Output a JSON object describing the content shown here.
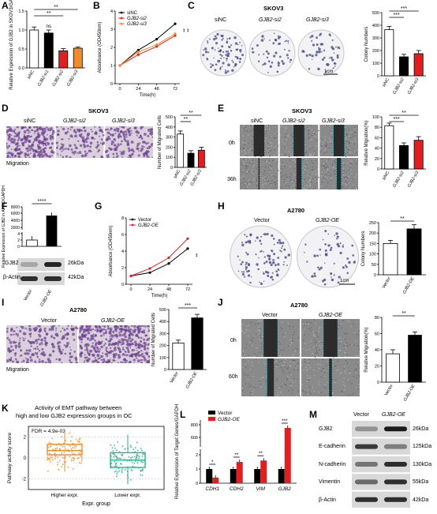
{
  "panels": {
    "A": {
      "label": "A"
    },
    "B": {
      "label": "B"
    },
    "C": {
      "label": "C",
      "title": "SKOV3",
      "groups": [
        "siNC",
        "GJB2-si2",
        "GJB2-si3"
      ],
      "scale": "1cm"
    },
    "D": {
      "label": "D",
      "title": "SKOV3",
      "groups": [
        "siNC",
        "GJB2-si2",
        "GJB2-si3"
      ],
      "caption": "Migration"
    },
    "E": {
      "label": "E",
      "title": "SKOV3",
      "groups": [
        "siNC",
        "GJB2-si2",
        "GJB2-si3"
      ],
      "rows": [
        "0h",
        "36h"
      ]
    },
    "F": {
      "label": "F",
      "blots": [
        {
          "name": "GJB2",
          "kda": "26kDa"
        },
        {
          "name": "β-Actin",
          "kda": "42kDa"
        }
      ]
    },
    "G": {
      "label": "G",
      "title": "A2780"
    },
    "H": {
      "label": "H",
      "title": "A2780",
      "groups": [
        "Vector",
        "GJB2-OE"
      ],
      "scale": "1cm"
    },
    "I": {
      "label": "I",
      "title": "A2780",
      "groups": [
        "Vector",
        "GJB2-OE"
      ],
      "caption": "Migration"
    },
    "J": {
      "label": "J",
      "title": "A2780",
      "groups": [
        "Vector",
        "GJB2-OE"
      ],
      "rows": [
        "0h",
        "60h"
      ]
    },
    "K": {
      "label": "K",
      "title_line1": "Activity of EMT pathway between",
      "title_line2": "high and low GJB2 expression groups in OC",
      "fdr": "FDR = 4.9e-03"
    },
    "L": {
      "label": "L"
    },
    "M": {
      "label": "M",
      "groups": [
        "Vector",
        "GJB2-OE"
      ],
      "blots": [
        {
          "name": "GJB2",
          "kda": "26kDa"
        },
        {
          "name": "E-cadherin",
          "kda": "125kDa"
        },
        {
          "name": "N-cadherin",
          "kda": "130kDa"
        },
        {
          "name": "Vimentin",
          "kda": "55kDa"
        },
        {
          "name": "β-Actin",
          "kda": "42kDa"
        }
      ]
    }
  },
  "chart_data": [
    {
      "id": "A",
      "type": "bar",
      "ylabel": "Relative Expression of GJB2 in SKOV3/GAPDH",
      "categories": [
        "siNC",
        "GJB2-si1",
        "GJB2-si2",
        "GJB2-si3"
      ],
      "values": [
        1.0,
        0.92,
        0.45,
        0.52
      ],
      "errors": [
        0.08,
        0.08,
        0.06,
        0.03
      ],
      "colors": [
        "#ffffff",
        "#000000",
        "#e02020",
        "#f08c2a"
      ],
      "ylim": [
        0,
        1.5
      ],
      "yticks": [
        "0.0",
        "0.5",
        "1.0",
        "1.5"
      ],
      "sig": [
        {
          "text": "**",
          "from": 0,
          "to": 3
        },
        {
          "text": "**",
          "from": 0,
          "to": 2
        },
        {
          "text": "ns",
          "at": 1
        }
      ]
    },
    {
      "id": "B",
      "type": "line",
      "xlabel": "Time(h)",
      "ylabel": "Absorbance (OD450nm)",
      "x": [
        0,
        24,
        48,
        72
      ],
      "xticks": [
        "0",
        "24",
        "48",
        "72"
      ],
      "ylim": [
        0,
        4
      ],
      "yticks": [
        "0",
        "1",
        "2",
        "3",
        "4"
      ],
      "series": [
        {
          "name": "siNC",
          "values": [
            1.0,
            1.85,
            2.45,
            3.3
          ],
          "color": "#000000"
        },
        {
          "name": "GJB2-si2",
          "values": [
            1.0,
            1.6,
            2.05,
            2.65
          ],
          "color": "#e02020"
        },
        {
          "name": "GJB2-si3",
          "values": [
            1.0,
            1.75,
            2.15,
            2.75
          ],
          "color": "#f08c2a"
        }
      ],
      "sig": [
        "**",
        "**"
      ]
    },
    {
      "id": "C",
      "type": "bar",
      "ylabel": "Colony Numbers",
      "categories": [
        "siNC",
        "GJB2-si2",
        "GJB2-si3"
      ],
      "values": [
        365,
        150,
        175
      ],
      "errors": [
        25,
        20,
        25
      ],
      "colors": [
        "#ffffff",
        "#000000",
        "#e02020"
      ],
      "ylim": [
        0,
        500
      ],
      "yticks": [
        "0",
        "100",
        "200",
        "300",
        "400",
        "500"
      ],
      "sig": [
        {
          "text": "***",
          "from": 0,
          "to": 2
        },
        {
          "text": "***",
          "from": 0,
          "to": 1
        }
      ]
    },
    {
      "id": "D",
      "type": "bar",
      "ylabel": "Number of Migrated Cells",
      "categories": [
        "siNC",
        "GJB2-si2",
        "GJB2-si3"
      ],
      "values": [
        330,
        140,
        170
      ],
      "errors": [
        30,
        25,
        30
      ],
      "colors": [
        "#ffffff",
        "#000000",
        "#e02020"
      ],
      "ylim": [
        0,
        500
      ],
      "yticks": [
        "0",
        "100",
        "200",
        "300",
        "400",
        "500"
      ],
      "sig": [
        {
          "text": "**",
          "from": 0,
          "to": 2
        },
        {
          "text": "**",
          "from": 0,
          "to": 1
        }
      ]
    },
    {
      "id": "E",
      "type": "bar",
      "ylabel": "Relative Migration(%)",
      "categories": [
        "siNC",
        "GJB2-si2",
        "GJB2-si3"
      ],
      "values": [
        83,
        45,
        55
      ],
      "errors": [
        5,
        5,
        7
      ],
      "colors": [
        "#ffffff",
        "#000000",
        "#e02020"
      ],
      "ylim": [
        0,
        100
      ],
      "yticks": [
        "0",
        "20",
        "40",
        "60",
        "80",
        "100"
      ],
      "sig": [
        {
          "text": "**",
          "from": 0,
          "to": 2
        },
        {
          "text": "***",
          "from": 0,
          "to": 1
        }
      ]
    },
    {
      "id": "F",
      "type": "bar",
      "ylabel": "Relative Expression of GJB2 in A2780/GAPDH",
      "categories": [
        "Vector",
        "GJB2-OE"
      ],
      "values": [
        1.0,
        5800
      ],
      "errors": [
        0.6,
        500
      ],
      "colors": [
        "#ffffff",
        "#000000"
      ],
      "yticks": [
        "0",
        "2",
        "4",
        "2000",
        "4000",
        "6000",
        "8000"
      ],
      "sig": [
        {
          "text": "****",
          "from": 0,
          "to": 1
        }
      ]
    },
    {
      "id": "G",
      "type": "line",
      "xlabel": "Time(h)",
      "ylabel": "Absorbance (OD450nm)",
      "x": [
        0,
        24,
        48,
        72
      ],
      "xticks": [
        "0",
        "24",
        "48",
        "72"
      ],
      "ylim": [
        0,
        8
      ],
      "yticks": [
        "0",
        "2",
        "4",
        "6",
        "8"
      ],
      "series": [
        {
          "name": "Vector",
          "values": [
            1.0,
            1.4,
            2.5,
            4.3
          ],
          "color": "#000000"
        },
        {
          "name": "GJB2-OE",
          "values": [
            1.0,
            1.9,
            3.2,
            5.5
          ],
          "color": "#e02020"
        }
      ],
      "sig": [
        "**"
      ]
    },
    {
      "id": "H",
      "type": "bar",
      "ylabel": "Colony Numbers",
      "categories": [
        "Vector",
        "GJB2-OE"
      ],
      "values": [
        150,
        220
      ],
      "errors": [
        15,
        20
      ],
      "colors": [
        "#ffffff",
        "#000000"
      ],
      "ylim": [
        0,
        250
      ],
      "yticks": [
        "0",
        "50",
        "100",
        "150",
        "200",
        "250"
      ],
      "sig": [
        {
          "text": "**",
          "from": 0,
          "to": 1
        }
      ]
    },
    {
      "id": "I",
      "type": "bar",
      "ylabel": "Number of Migrated Cells",
      "categories": [
        "Vector",
        "GJB2-OE"
      ],
      "values": [
        220,
        430
      ],
      "errors": [
        25,
        30
      ],
      "colors": [
        "#ffffff",
        "#000000"
      ],
      "ylim": [
        0,
        500
      ],
      "yticks": [
        "0",
        "100",
        "200",
        "300",
        "400",
        "500"
      ],
      "sig": [
        {
          "text": "***",
          "from": 0,
          "to": 1
        }
      ]
    },
    {
      "id": "J",
      "type": "bar",
      "ylabel": "Relative Migration(%)",
      "categories": [
        "Vector",
        "GJB2-OE"
      ],
      "values": [
        35,
        58
      ],
      "errors": [
        5,
        4
      ],
      "colors": [
        "#ffffff",
        "#000000"
      ],
      "ylim": [
        0,
        80
      ],
      "yticks": [
        "0",
        "20",
        "40",
        "60",
        "80"
      ],
      "sig": [
        {
          "text": "**",
          "from": 0,
          "to": 1
        }
      ]
    },
    {
      "id": "K",
      "type": "box",
      "xlabel": "Expr. group",
      "ylabel": "Pathway activity score",
      "categories": [
        "Higher expr.",
        "Lower expr."
      ],
      "ylim": [
        -3,
        3
      ],
      "yticks": [
        "-2",
        "0",
        "2"
      ],
      "boxes": [
        {
          "q1": 0.3,
          "median": 0.7,
          "q3": 1.3,
          "min": -1.3,
          "max": 2.5,
          "color": "#f08c2a"
        },
        {
          "q1": -0.9,
          "median": -0.2,
          "q3": 0.5,
          "min": -2.5,
          "max": 2.2,
          "color": "#2ab08a"
        }
      ]
    },
    {
      "id": "L",
      "type": "bar",
      "ylabel": "Relative Expression of Target Genes/GAPDH",
      "categories": [
        "CDH1",
        "CDH2",
        "VIM",
        "GJB2"
      ],
      "series": [
        {
          "name": "Vector",
          "values": [
            1.0,
            1.0,
            1.0,
            1.0
          ],
          "color": "#000000"
        },
        {
          "name": "GJB2-OE",
          "values": [
            0.4,
            1.5,
            1.6,
            850
          ],
          "color": "#e02020"
        }
      ],
      "yticks": [
        "0",
        "1",
        "2",
        "600",
        "800"
      ],
      "sig": [
        "*",
        "**",
        "**",
        "***"
      ]
    }
  ]
}
